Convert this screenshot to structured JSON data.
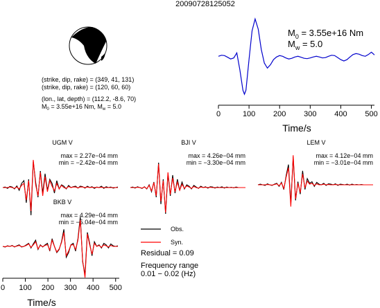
{
  "title": "20090728125052",
  "mechanism": {
    "lines": [
      "(strike, dip, rake) = (349, 41, 131)",
      "(strike, dip, rake) = (120, 60, 60)",
      "(lon., lat, depth) = (112.2, -8.6, 70)"
    ],
    "m0_line": "M",
    "m0_sub": "0",
    "m0_val": " = 3.55e+16 Nm, M",
    "mw_sub": "w",
    "mw_val": " = 5.0"
  },
  "stf_label": {
    "m0_main": "M",
    "m0_sub": "0",
    "m0_val": " = 3.55e+16 Nm",
    "mw_main": "M",
    "mw_sub": "w",
    "mw_val": " = 5.0"
  },
  "legend": {
    "obs": "Obs.",
    "syn": "Syn.",
    "residual": "Residual = 0.09",
    "freq_title": "Frequency range",
    "freq_value": "0.01 − 0.02 (Hz)"
  },
  "colors": {
    "observed": "#000000",
    "synthetic": "#ff0000",
    "stf": "#0000cc"
  },
  "chart_data": [
    {
      "type": "line",
      "name": "source-time-function",
      "xlabel": "Time/s",
      "xticks": [
        0,
        100,
        200,
        300,
        400,
        500
      ],
      "xlim": [
        0,
        510
      ],
      "ylim": [
        -1.2,
        1.15
      ],
      "x": [
        0,
        10,
        20,
        30,
        40,
        50,
        60,
        70,
        80,
        85,
        90,
        100,
        110,
        120,
        130,
        140,
        150,
        160,
        170,
        180,
        190,
        200,
        210,
        220,
        230,
        240,
        250,
        260,
        270,
        280,
        290,
        300,
        310,
        320,
        330,
        340,
        350,
        360,
        370,
        380,
        390,
        400,
        410,
        420,
        430,
        440,
        450,
        460,
        470,
        480,
        490,
        500,
        510
      ],
      "y": [
        0.0,
        0.03,
        0.02,
        -0.03,
        -0.08,
        -0.05,
        0.1,
        -0.4,
        -1.0,
        -1.12,
        -1.0,
        -0.1,
        0.75,
        1.1,
        0.8,
        0.2,
        -0.2,
        -0.35,
        -0.25,
        -0.1,
        -0.02,
        0.02,
        0.0,
        -0.05,
        -0.08,
        -0.06,
        -0.02,
        0.0,
        -0.03,
        -0.06,
        -0.07,
        -0.05,
        -0.02,
        0.0,
        -0.02,
        -0.05,
        -0.04,
        0.0,
        0.03,
        0.02,
        -0.04,
        -0.1,
        -0.14,
        -0.1,
        -0.02,
        0.05,
        0.08,
        0.06,
        0.02,
        0.0,
        0.05,
        0.12,
        0.04
      ]
    },
    {
      "type": "line",
      "name": "waveforms",
      "xlabel": "Time/s",
      "xticks": [
        0,
        100,
        200,
        300,
        400,
        500
      ],
      "traces": [
        {
          "station": "UGM V",
          "max": "max = 2.27e−04 mm",
          "min": "min = −2.42e−04 mm",
          "obs": [
            0,
            0.02,
            -0.03,
            0.04,
            0.02,
            -0.05,
            0.06,
            -0.1,
            0.15,
            0.25,
            -0.55,
            0.3,
            -1.0,
            0.95,
            0.2,
            -0.35,
            0.6,
            -0.2,
            0.5,
            -0.1,
            0.3,
            0.15,
            -0.2,
            0.25,
            -0.05,
            0.1,
            0.05,
            -0.05,
            0.08,
            0.0,
            0.03,
            0.05,
            -0.02,
            0.05,
            0.03,
            -0.02,
            0.05,
            0.0,
            0.03,
            -0.03,
            0.02,
            0.0,
            0.05,
            -0.03,
            0.03,
            0.0,
            0.02,
            -0.02,
            0.0,
            0.02
          ],
          "syn": [
            0,
            0.0,
            0.0,
            0.02,
            0.0,
            -0.03,
            0.02,
            -0.05,
            0.08,
            0.15,
            -0.45,
            0.25,
            -0.85,
            1.0,
            0.1,
            -0.3,
            0.55,
            -0.3,
            0.4,
            -0.15,
            0.25,
            0.05,
            -0.12,
            0.15,
            -0.05,
            0.08,
            0.0,
            -0.03,
            0.04,
            0.0,
            0.02,
            0.02,
            -0.01,
            0.02,
            0.02,
            0.0,
            0.02,
            0.0,
            0.01,
            0.0,
            0.01,
            0.0,
            0.01,
            0.0,
            0.0,
            0.0,
            0.0,
            0.0,
            0.0,
            0.0
          ]
        },
        {
          "station": "BJI V",
          "max": "max = 4.26e−04 mm",
          "min": "min = −3.30e−04 mm",
          "obs": [
            0,
            0.02,
            -0.02,
            0.03,
            0.0,
            -0.03,
            0.03,
            -0.05,
            0.1,
            -0.15,
            0.2,
            -0.35,
            0.9,
            -0.6,
            0.3,
            -0.95,
            0.5,
            -0.3,
            0.45,
            -0.2,
            0.3,
            -0.1,
            0.2,
            -0.05,
            0.1,
            0.05,
            -0.05,
            0.08,
            0.02,
            -0.03,
            0.05,
            0.0,
            0.03,
            -0.02,
            0.03,
            0.02,
            -0.02,
            0.02,
            0.0,
            0.03,
            -0.02,
            0.02,
            0.0,
            0.01,
            -0.01,
            0.02,
            0.0,
            0.0,
            0.0,
            0.0
          ],
          "syn": [
            0,
            0.0,
            0.0,
            0.01,
            0.0,
            -0.02,
            0.02,
            -0.04,
            0.08,
            -0.12,
            0.18,
            -0.3,
            0.85,
            -0.5,
            0.25,
            -0.9,
            0.55,
            -0.25,
            0.35,
            -0.15,
            0.2,
            -0.1,
            0.12,
            -0.03,
            0.06,
            0.02,
            -0.03,
            0.04,
            0.0,
            -0.02,
            0.02,
            0.0,
            0.01,
            0.0,
            0.01,
            0.0,
            0.0,
            0.0,
            0.0,
            0.0,
            0.0,
            0.0,
            0.0,
            0.0,
            0.0,
            0.0,
            0.0,
            0.0,
            0.0,
            0.0
          ]
        },
        {
          "station": "LEM V",
          "max": "max = 4.12e−04 mm",
          "min": "min = −3.01e−04 mm",
          "obs": [
            0,
            0.02,
            0.0,
            -0.02,
            0.03,
            0.0,
            -0.02,
            0.02,
            0.05,
            -0.05,
            0.08,
            -0.15,
            0.3,
            0.65,
            -0.6,
            0.9,
            -0.5,
            0.1,
            -0.3,
            0.45,
            -0.15,
            0.2,
            0.05,
            0.1,
            -0.05,
            0.08,
            0.02,
            0.0,
            0.05,
            -0.02,
            0.03,
            0.02,
            0.0,
            0.03,
            -0.02,
            0.02,
            0.01,
            0.0,
            0.02,
            -0.01,
            0.02,
            0.0,
            0.01,
            0.0,
            0.01,
            0.0,
            0.0,
            0.0,
            0.0,
            0.0
          ],
          "syn": [
            0,
            0.0,
            0.0,
            0.0,
            0.01,
            0.0,
            -0.01,
            0.01,
            0.03,
            -0.03,
            0.06,
            -0.12,
            0.25,
            0.55,
            -0.7,
            0.95,
            -0.45,
            0.05,
            -0.25,
            0.35,
            -0.1,
            0.12,
            0.02,
            0.05,
            -0.02,
            0.03,
            0.0,
            0.0,
            0.02,
            0.0,
            0.01,
            0.0,
            0.0,
            0.01,
            0.0,
            0.0,
            0.0,
            0.0,
            0.0,
            0.0,
            0.0,
            0.0,
            0.0,
            0.0,
            0.0,
            0.0,
            0.0,
            0.0,
            0.0,
            0.0
          ]
        },
        {
          "station": "BKB V",
          "max": "max = 4.29e−04 mm",
          "min": "min = −5.04e−04 mm",
          "obs": [
            0,
            -0.02,
            0.02,
            0.0,
            0.03,
            -0.02,
            0.02,
            0.05,
            -0.02,
            0.0,
            0.05,
            0.1,
            -0.05,
            0.08,
            0.2,
            -0.1,
            0.05,
            -0.02,
            0.05,
            0.1,
            -0.15,
            0.25,
            0.0,
            -0.2,
            -0.1,
            0.15,
            0.55,
            -0.35,
            -0.2,
            0.05,
            0.1,
            -0.15,
            0.25,
            0.95,
            -0.5,
            -0.9,
            0.45,
            0.1,
            -0.3,
            0.15,
            0.0,
            0.05,
            -0.05,
            0.1,
            0.05,
            -0.05,
            0.08,
            0.02,
            0.0,
            0.02
          ],
          "syn": [
            0,
            -0.01,
            0.01,
            0.0,
            0.02,
            -0.01,
            0.01,
            0.03,
            -0.01,
            0.0,
            0.03,
            0.08,
            -0.03,
            0.05,
            0.15,
            -0.08,
            0.03,
            -0.01,
            0.03,
            0.06,
            -0.12,
            0.2,
            0.0,
            -0.18,
            -0.08,
            0.12,
            0.45,
            -0.3,
            -0.15,
            0.04,
            0.06,
            -0.1,
            0.2,
            0.85,
            -0.45,
            -1.0,
            0.4,
            0.05,
            -0.25,
            0.1,
            0.0,
            0.03,
            -0.03,
            0.05,
            0.02,
            -0.02,
            0.03,
            0.0,
            0.0,
            0.0
          ]
        }
      ]
    }
  ]
}
